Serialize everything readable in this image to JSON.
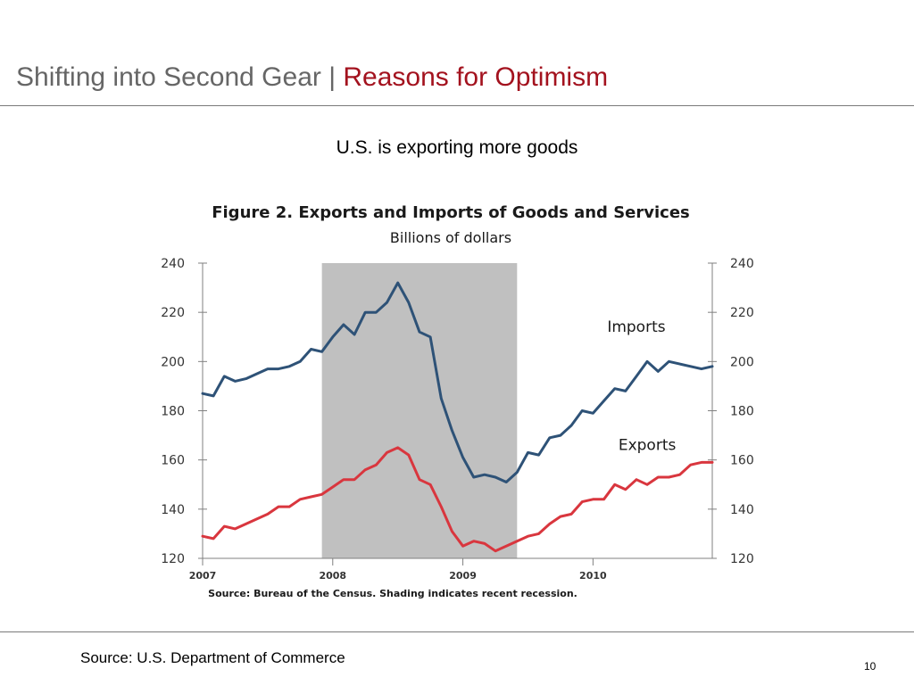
{
  "slide": {
    "title_main": "Shifting into Second Gear | ",
    "title_accent": "Reasons for Optimism",
    "subtitle": "U.S. is exporting more goods",
    "source": "Source: U.S. Department of Commerce",
    "page_number": "10"
  },
  "colors": {
    "title_gray": "#666666",
    "accent_red": "#a3121e",
    "imports_line": "#2e5277",
    "exports_line": "#d9363e",
    "recession_shade": "#c0c0c0"
  },
  "chart_data": {
    "type": "line",
    "title": "Figure 2. Exports and Imports of Goods and Services",
    "subtitle": "Billions of dollars",
    "note": "Source: Bureau of the Census.  Shading indicates recent recession.",
    "x_tick_labels": [
      "2007",
      "2008",
      "2009",
      "2010"
    ],
    "y_ticks": [
      120,
      140,
      160,
      180,
      200,
      220,
      240
    ],
    "ylim": [
      120,
      240
    ],
    "xlim": [
      "2007-01",
      "2010-12"
    ],
    "grid": false,
    "recession": {
      "start": "2007-12",
      "end": "2009-06"
    },
    "series": [
      {
        "name": "Imports",
        "x": [
          "2007-01",
          "2007-02",
          "2007-03",
          "2007-04",
          "2007-05",
          "2007-06",
          "2007-07",
          "2007-08",
          "2007-09",
          "2007-10",
          "2007-11",
          "2007-12",
          "2008-01",
          "2008-02",
          "2008-03",
          "2008-04",
          "2008-05",
          "2008-06",
          "2008-07",
          "2008-08",
          "2008-09",
          "2008-10",
          "2008-11",
          "2008-12",
          "2009-01",
          "2009-02",
          "2009-03",
          "2009-04",
          "2009-05",
          "2009-06",
          "2009-07",
          "2009-08",
          "2009-09",
          "2009-10",
          "2009-11",
          "2009-12",
          "2010-01",
          "2010-02",
          "2010-03",
          "2010-04",
          "2010-05",
          "2010-06",
          "2010-07",
          "2010-08",
          "2010-09",
          "2010-10",
          "2010-11",
          "2010-12"
        ],
        "values": [
          187,
          186,
          194,
          192,
          193,
          195,
          197,
          197,
          198,
          200,
          205,
          204,
          210,
          215,
          211,
          220,
          220,
          224,
          232,
          224,
          212,
          210,
          185,
          172,
          161,
          153,
          154,
          153,
          151,
          155,
          163,
          162,
          169,
          170,
          174,
          180,
          179,
          184,
          189,
          188,
          194,
          200,
          196,
          200,
          199,
          198,
          197,
          198
        ]
      },
      {
        "name": "Exports",
        "x": [
          "2007-01",
          "2007-02",
          "2007-03",
          "2007-04",
          "2007-05",
          "2007-06",
          "2007-07",
          "2007-08",
          "2007-09",
          "2007-10",
          "2007-11",
          "2007-12",
          "2008-01",
          "2008-02",
          "2008-03",
          "2008-04",
          "2008-05",
          "2008-06",
          "2008-07",
          "2008-08",
          "2008-09",
          "2008-10",
          "2008-11",
          "2008-12",
          "2009-01",
          "2009-02",
          "2009-03",
          "2009-04",
          "2009-05",
          "2009-06",
          "2009-07",
          "2009-08",
          "2009-09",
          "2009-10",
          "2009-11",
          "2009-12",
          "2010-01",
          "2010-02",
          "2010-03",
          "2010-04",
          "2010-05",
          "2010-06",
          "2010-07",
          "2010-08",
          "2010-09",
          "2010-10",
          "2010-11",
          "2010-12"
        ],
        "values": [
          129,
          128,
          133,
          132,
          134,
          136,
          138,
          141,
          141,
          144,
          145,
          146,
          149,
          152,
          152,
          156,
          158,
          163,
          165,
          162,
          152,
          150,
          141,
          131,
          125,
          127,
          126,
          123,
          125,
          127,
          129,
          130,
          134,
          137,
          138,
          143,
          144,
          144,
          150,
          148,
          152,
          150,
          153,
          153,
          154,
          158,
          159,
          159
        ]
      }
    ],
    "labels": [
      {
        "text": "Imports",
        "series": "Imports",
        "x": "2010-05",
        "y": 212
      },
      {
        "text": "Exports",
        "series": "Exports",
        "x": "2010-06",
        "y": 164
      }
    ]
  }
}
